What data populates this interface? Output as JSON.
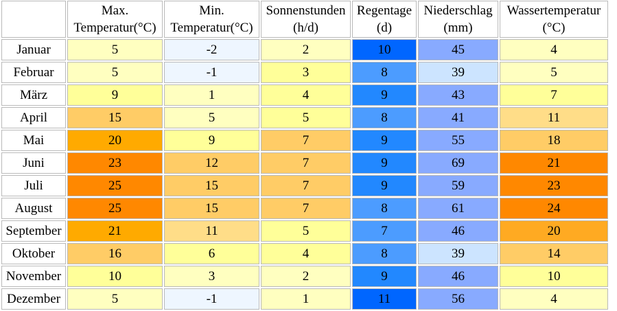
{
  "columns": [
    {
      "line1": "Max.",
      "line2": "Temperatur(°C)"
    },
    {
      "line1": "Min.",
      "line2": "Temperatur(°C)"
    },
    {
      "line1": "Sonnenstunden",
      "line2": "(h/d)"
    },
    {
      "line1": "Regentage",
      "line2": "(d)"
    },
    {
      "line1": "Niederschlag",
      "line2": "(mm)"
    },
    {
      "line1": "Wassertemperatur",
      "line2": "(°C)"
    }
  ],
  "rows": [
    {
      "month": "Januar",
      "values": [
        "5",
        "-2",
        "2",
        "10",
        "45",
        "4"
      ],
      "colors": [
        "#ffffc0",
        "#eef6ff",
        "#ffffc0",
        "#0066ff",
        "#88aaff",
        "#ffffc0"
      ]
    },
    {
      "month": "Februar",
      "values": [
        "5",
        "-1",
        "3",
        "8",
        "39",
        "5"
      ],
      "colors": [
        "#ffffc0",
        "#eef6ff",
        "#ffff99",
        "#4c9cff",
        "#cce4ff",
        "#ffffc0"
      ]
    },
    {
      "month": "März",
      "values": [
        "9",
        "1",
        "4",
        "9",
        "43",
        "7"
      ],
      "colors": [
        "#ffff99",
        "#ffffc0",
        "#ffff99",
        "#2288ff",
        "#88aaff",
        "#ffff99"
      ]
    },
    {
      "month": "April",
      "values": [
        "15",
        "5",
        "5",
        "8",
        "41",
        "11"
      ],
      "colors": [
        "#ffcc66",
        "#ffffc0",
        "#ffff99",
        "#4c9cff",
        "#88aaff",
        "#ffdd88"
      ]
    },
    {
      "month": "Mai",
      "values": [
        "20",
        "9",
        "7",
        "9",
        "55",
        "18"
      ],
      "colors": [
        "#ffaa00",
        "#ffff99",
        "#ffcc66",
        "#2288ff",
        "#88aaff",
        "#ffcc66"
      ]
    },
    {
      "month": "Juni",
      "values": [
        "23",
        "12",
        "7",
        "9",
        "69",
        "21"
      ],
      "colors": [
        "#ff8800",
        "#ffcc66",
        "#ffcc66",
        "#2288ff",
        "#88aaff",
        "#ff8800"
      ]
    },
    {
      "month": "Juli",
      "values": [
        "25",
        "15",
        "7",
        "9",
        "59",
        "23"
      ],
      "colors": [
        "#ff8800",
        "#ffcc66",
        "#ffcc66",
        "#2288ff",
        "#88aaff",
        "#ff8800"
      ]
    },
    {
      "month": "August",
      "values": [
        "25",
        "15",
        "7",
        "8",
        "61",
        "24"
      ],
      "colors": [
        "#ff8800",
        "#ffcc66",
        "#ffcc66",
        "#4c9cff",
        "#88aaff",
        "#ff8800"
      ]
    },
    {
      "month": "September",
      "values": [
        "21",
        "11",
        "5",
        "7",
        "46",
        "20"
      ],
      "colors": [
        "#ffaa00",
        "#ffdd88",
        "#ffff99",
        "#4c9cff",
        "#88aaff",
        "#ffaa22"
      ]
    },
    {
      "month": "Oktober",
      "values": [
        "16",
        "6",
        "4",
        "8",
        "39",
        "14"
      ],
      "colors": [
        "#ffcc66",
        "#ffff99",
        "#ffff99",
        "#4c9cff",
        "#cce4ff",
        "#ffcc66"
      ]
    },
    {
      "month": "November",
      "values": [
        "10",
        "3",
        "2",
        "9",
        "46",
        "10"
      ],
      "colors": [
        "#ffff99",
        "#ffffc0",
        "#ffffc0",
        "#2288ff",
        "#88aaff",
        "#ffff99"
      ]
    },
    {
      "month": "Dezember",
      "values": [
        "5",
        "-1",
        "1",
        "11",
        "56",
        "4"
      ],
      "colors": [
        "#ffffc0",
        "#eef6ff",
        "#ffffc0",
        "#0066ff",
        "#88aaff",
        "#ffffc0"
      ]
    }
  ]
}
